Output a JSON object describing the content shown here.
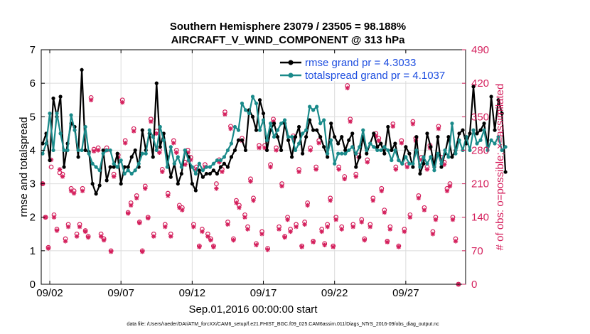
{
  "chart_data": {
    "type": "line",
    "title": "Southern Hemisphere 23079 / 23505 = 98.188%",
    "subtitle": "AIRCRAFT_V_WIND_COMPONENT @ 313 hPa",
    "xlabel": "Sep.01,2016 00:00:00 start",
    "ylabel_left": "rmse and totalspread",
    "ylabel_right": "# of obs: o=possible; ×=assimilated",
    "footer": "data file: /Users/raeder/DAI/ATM_forcXX/CAM6_setup/f.e21.FHIST_BGC.f09_025.CAM6assim.011/Diags_NTrS_2016-09/obs_diag_output.nc",
    "xlim": [
      1.4,
      31.2
    ],
    "ylim_left": [
      0,
      7
    ],
    "ylim_right": [
      0,
      490
    ],
    "x_ticks": [
      2,
      7,
      12,
      17,
      22,
      27
    ],
    "x_tick_labels": [
      "09/02",
      "09/07",
      "09/12",
      "09/17",
      "09/22",
      "09/27"
    ],
    "y_left_ticks": [
      0,
      1,
      2,
      3,
      4,
      5,
      6,
      7
    ],
    "y_left_tick_labels": [
      "0",
      "1",
      "2",
      "3",
      "4",
      "5",
      "6",
      "7"
    ],
    "y_right_ticks": [
      0,
      70,
      140,
      210,
      280,
      350,
      420,
      490
    ],
    "y_right_tick_labels": [
      "0",
      "70",
      "140",
      "210",
      "280",
      "350",
      "420",
      "490"
    ],
    "colors": {
      "rmse": "#000000",
      "spread": "#1a8a8a",
      "obs": "#d41f5c",
      "legend_text": "#1f4fe0"
    },
    "legend": [
      {
        "name": "rmse grand pr = 4.3033",
        "color": "#000000"
      },
      {
        "name": "totalspread grand pr = 4.1037",
        "color": "#1a8a8a"
      }
    ],
    "x_start": 1.5,
    "x_step": 0.25,
    "series": [
      {
        "name": "rmse",
        "values": [
          4.2,
          4.5,
          3.7,
          5.55,
          5.0,
          5.6,
          3.5,
          4.2,
          4.8,
          4.7,
          3.8,
          6.4,
          4.0,
          3.95,
          3.0,
          2.7,
          2.95,
          4.0,
          3.1,
          3.5,
          3.5,
          3.9,
          3.0,
          3.5,
          3.5,
          3.8,
          4.0,
          3.5,
          4.6,
          4.0,
          4.5,
          3.8,
          6.0,
          4.1,
          4.5,
          3.8,
          3.2,
          3.6,
          3.0,
          3.3,
          4.0,
          3.8,
          3.0,
          2.8,
          3.4,
          3.2,
          3.3,
          3.3,
          3.4,
          3.3,
          3.5,
          3.6,
          3.5,
          3.8,
          4.0,
          4.3,
          4.3,
          4.0,
          5.2,
          5.0,
          4.6,
          5.5,
          5.1,
          4.0,
          4.6,
          4.8,
          4.4,
          4.0,
          4.8,
          4.3,
          3.8,
          4.4,
          4.7,
          3.9,
          4.4,
          4.9,
          4.6,
          4.6,
          4.4,
          4.1,
          3.8,
          4.8,
          4.4,
          4.2,
          4.4,
          4.0,
          4.3,
          4.5,
          3.5,
          3.8,
          4.4,
          3.9,
          4.2,
          4.5,
          4.1,
          4.2,
          3.9,
          4.7,
          4.0,
          4.2,
          3.7,
          3.6,
          4.1,
          3.9,
          3.5,
          4.4,
          3.3,
          3.6,
          4.5,
          4.1,
          3.5,
          4.4,
          3.5,
          3.9,
          4.4,
          3.8,
          4.0,
          4.5,
          4.6,
          4.2,
          4.5,
          5.9,
          4.5,
          4.6,
          4.8,
          4.1,
          5.6,
          4.6,
          5.5,
          5.1,
          3.35
        ]
      },
      {
        "name": "totalspread",
        "values": [
          3.9,
          4.2,
          5.1,
          4.0,
          5.1,
          4.5,
          4.0,
          4.0,
          5.05,
          4.6,
          4.0,
          4.0,
          4.7,
          3.9,
          3.6,
          3.5,
          3.4,
          3.9,
          4.0,
          4.0,
          3.6,
          3.5,
          3.7,
          3.3,
          3.4,
          3.3,
          3.4,
          3.6,
          3.9,
          3.9,
          4.6,
          4.4,
          4.0,
          4.7,
          4.3,
          3.5,
          4.1,
          3.6,
          3.8,
          3.5,
          4.0,
          3.7,
          3.5,
          3.3,
          3.6,
          3.4,
          3.5,
          3.5,
          3.6,
          3.7,
          3.7,
          3.8,
          4.0,
          4.2,
          4.7,
          4.6,
          5.4,
          5.2,
          5.1,
          5.6,
          5.4,
          4.6,
          4.9,
          4.3,
          4.8,
          4.4,
          4.6,
          4.8,
          4.9,
          4.4,
          4.4,
          4.0,
          4.2,
          4.5,
          4.6,
          5.3,
          5.2,
          5.3,
          4.8,
          4.9,
          3.9,
          4.3,
          3.6,
          3.9,
          3.9,
          3.9,
          4.0,
          4.1,
          3.9,
          4.1,
          4.6,
          4.0,
          4.2,
          4.1,
          4.0,
          4.0,
          4.1,
          4.0,
          3.7,
          4.0,
          3.7,
          3.6,
          3.8,
          3.6,
          3.6,
          4.0,
          3.5,
          3.8,
          3.6,
          3.8,
          3.4,
          3.9,
          3.6,
          4.0,
          3.8,
          4.8,
          3.9,
          4.3,
          4.0,
          4.4,
          4.0,
          4.6,
          4.2,
          4.3,
          4.6,
          4.0,
          4.3,
          4.2,
          4.4,
          4.0,
          4.1
        ]
      }
    ],
    "obs_possible": [
      [
        1.5,
        210
      ],
      [
        1.7,
        140
      ],
      [
        1.9,
        77
      ],
      [
        2.1,
        245
      ],
      [
        2.3,
        145
      ],
      [
        2.5,
        115
      ],
      [
        2.7,
        233
      ],
      [
        2.9,
        230
      ],
      [
        3.1,
        95
      ],
      [
        3.3,
        125
      ],
      [
        3.5,
        200
      ],
      [
        3.7,
        195
      ],
      [
        3.9,
        105
      ],
      [
        4.1,
        125
      ],
      [
        4.3,
        200
      ],
      [
        4.5,
        112
      ],
      [
        4.7,
        100
      ],
      [
        4.9,
        390
      ],
      [
        5.1,
        282
      ],
      [
        5.4,
        285
      ],
      [
        5.6,
        105
      ],
      [
        5.8,
        95
      ],
      [
        6.0,
        285
      ],
      [
        6.3,
        70
      ],
      [
        6.5,
        230
      ],
      [
        6.8,
        270
      ],
      [
        7.1,
        385
      ],
      [
        7.3,
        300
      ],
      [
        7.5,
        150
      ],
      [
        7.7,
        170
      ],
      [
        7.9,
        325
      ],
      [
        8.1,
        185
      ],
      [
        8.3,
        130
      ],
      [
        8.5,
        70
      ],
      [
        8.7,
        205
      ],
      [
        8.9,
        140
      ],
      [
        9.1,
        345
      ],
      [
        9.3,
        105
      ],
      [
        9.5,
        320
      ],
      [
        9.7,
        280
      ],
      [
        9.9,
        240
      ],
      [
        10.1,
        125
      ],
      [
        10.3,
        190
      ],
      [
        10.5,
        105
      ],
      [
        10.7,
        300
      ],
      [
        10.9,
        280
      ],
      [
        11.1,
        165
      ],
      [
        11.3,
        160
      ],
      [
        11.5,
        255
      ],
      [
        11.7,
        280
      ],
      [
        11.9,
        265
      ],
      [
        12.1,
        125
      ],
      [
        12.3,
        245
      ],
      [
        12.5,
        80
      ],
      [
        12.7,
        115
      ],
      [
        12.9,
        250
      ],
      [
        13.1,
        105
      ],
      [
        13.3,
        95
      ],
      [
        13.5,
        80
      ],
      [
        13.7,
        210
      ],
      [
        13.9,
        260
      ],
      [
        14.1,
        240
      ],
      [
        14.3,
        360
      ],
      [
        14.5,
        130
      ],
      [
        14.7,
        330
      ],
      [
        14.9,
        95
      ],
      [
        15.1,
        175
      ],
      [
        15.3,
        165
      ],
      [
        15.5,
        305
      ],
      [
        15.7,
        145
      ],
      [
        15.9,
        120
      ],
      [
        16.1,
        220
      ],
      [
        16.3,
        180
      ],
      [
        16.5,
        85
      ],
      [
        16.7,
        290
      ],
      [
        16.9,
        110
      ],
      [
        17.1,
        290
      ],
      [
        17.3,
        75
      ],
      [
        17.5,
        250
      ],
      [
        17.7,
        345
      ],
      [
        17.9,
        285
      ],
      [
        18.1,
        120
      ],
      [
        18.3,
        210
      ],
      [
        18.5,
        100
      ],
      [
        18.7,
        140
      ],
      [
        18.9,
        115
      ],
      [
        19.1,
        310
      ],
      [
        19.3,
        125
      ],
      [
        19.5,
        240
      ],
      [
        19.7,
        80
      ],
      [
        19.9,
        130
      ],
      [
        20.1,
        170
      ],
      [
        20.3,
        285
      ],
      [
        20.5,
        90
      ],
      [
        20.7,
        245
      ],
      [
        20.9,
        300
      ],
      [
        21.1,
        115
      ],
      [
        21.3,
        85
      ],
      [
        21.5,
        125
      ],
      [
        21.7,
        180
      ],
      [
        21.9,
        80
      ],
      [
        22.1,
        140
      ],
      [
        22.3,
        245
      ],
      [
        22.5,
        120
      ],
      [
        22.7,
        225
      ],
      [
        22.9,
        415
      ],
      [
        23.1,
        345
      ],
      [
        23.3,
        125
      ],
      [
        23.5,
        230
      ],
      [
        23.7,
        270
      ],
      [
        23.9,
        135
      ],
      [
        24.1,
        95
      ],
      [
        24.3,
        260
      ],
      [
        24.5,
        125
      ],
      [
        24.7,
        180
      ],
      [
        24.9,
        315
      ],
      [
        25.1,
        305
      ],
      [
        25.3,
        200
      ],
      [
        25.5,
        155
      ],
      [
        25.7,
        90
      ],
      [
        25.9,
        120
      ],
      [
        26.1,
        335
      ],
      [
        26.3,
        245
      ],
      [
        26.5,
        80
      ],
      [
        26.7,
        300
      ],
      [
        26.9,
        115
      ],
      [
        27.1,
        250
      ],
      [
        27.3,
        145
      ],
      [
        27.5,
        340
      ],
      [
        27.7,
        305
      ],
      [
        27.9,
        185
      ],
      [
        28.1,
        265
      ],
      [
        28.3,
        160
      ],
      [
        28.5,
        245
      ],
      [
        28.7,
        290
      ],
      [
        28.9,
        110
      ],
      [
        29.1,
        140
      ],
      [
        29.3,
        330
      ],
      [
        29.5,
        265
      ],
      [
        29.7,
        255
      ],
      [
        29.9,
        200
      ],
      [
        30.1,
        210
      ],
      [
        30.3,
        140
      ],
      [
        30.5,
        95
      ],
      [
        30.7,
        0
      ]
    ],
    "obs_assimilated": [
      [
        1.5,
        210
      ],
      [
        1.7,
        140
      ],
      [
        1.9,
        75
      ],
      [
        2.1,
        260
      ],
      [
        2.3,
        140
      ],
      [
        2.5,
        112
      ],
      [
        2.7,
        240
      ],
      [
        2.9,
        225
      ],
      [
        3.1,
        90
      ],
      [
        3.3,
        120
      ],
      [
        3.5,
        195
      ],
      [
        3.7,
        190
      ],
      [
        3.9,
        100
      ],
      [
        4.1,
        120
      ],
      [
        4.3,
        195
      ],
      [
        4.5,
        110
      ],
      [
        4.7,
        98
      ],
      [
        4.9,
        385
      ],
      [
        5.1,
        278
      ],
      [
        5.4,
        280
      ],
      [
        5.6,
        100
      ],
      [
        5.8,
        92
      ],
      [
        6.0,
        280
      ],
      [
        6.3,
        68
      ],
      [
        6.5,
        225
      ],
      [
        6.8,
        265
      ],
      [
        7.1,
        380
      ],
      [
        7.3,
        295
      ],
      [
        7.5,
        148
      ],
      [
        7.7,
        165
      ],
      [
        7.9,
        320
      ],
      [
        8.1,
        180
      ],
      [
        8.3,
        128
      ],
      [
        8.5,
        68
      ],
      [
        8.7,
        200
      ],
      [
        8.9,
        138
      ],
      [
        9.1,
        340
      ],
      [
        9.3,
        100
      ],
      [
        9.5,
        315
      ],
      [
        9.7,
        275
      ],
      [
        9.9,
        235
      ],
      [
        10.1,
        120
      ],
      [
        10.3,
        185
      ],
      [
        10.5,
        100
      ],
      [
        10.7,
        295
      ],
      [
        10.9,
        275
      ],
      [
        11.1,
        160
      ],
      [
        11.3,
        155
      ],
      [
        11.5,
        250
      ],
      [
        11.7,
        275
      ],
      [
        11.9,
        260
      ],
      [
        12.1,
        120
      ],
      [
        12.3,
        240
      ],
      [
        12.5,
        78
      ],
      [
        12.7,
        110
      ],
      [
        12.9,
        245
      ],
      [
        13.1,
        100
      ],
      [
        13.3,
        92
      ],
      [
        13.5,
        78
      ],
      [
        13.7,
        200
      ],
      [
        13.9,
        255
      ],
      [
        14.1,
        235
      ],
      [
        14.3,
        355
      ],
      [
        14.5,
        125
      ],
      [
        14.7,
        325
      ],
      [
        14.9,
        92
      ],
      [
        15.1,
        170
      ],
      [
        15.3,
        160
      ],
      [
        15.5,
        300
      ],
      [
        15.7,
        140
      ],
      [
        15.9,
        115
      ],
      [
        16.1,
        215
      ],
      [
        16.3,
        175
      ],
      [
        16.5,
        82
      ],
      [
        16.7,
        285
      ],
      [
        16.9,
        105
      ],
      [
        17.1,
        285
      ],
      [
        17.3,
        72
      ],
      [
        17.5,
        245
      ],
      [
        17.7,
        340
      ],
      [
        17.9,
        280
      ],
      [
        18.1,
        115
      ],
      [
        18.3,
        205
      ],
      [
        18.5,
        98
      ],
      [
        18.7,
        135
      ],
      [
        18.9,
        110
      ],
      [
        19.1,
        305
      ],
      [
        19.3,
        120
      ],
      [
        19.5,
        235
      ],
      [
        19.7,
        78
      ],
      [
        19.9,
        125
      ],
      [
        20.1,
        165
      ],
      [
        20.3,
        280
      ],
      [
        20.5,
        88
      ],
      [
        20.7,
        240
      ],
      [
        20.9,
        295
      ],
      [
        21.1,
        110
      ],
      [
        21.3,
        82
      ],
      [
        21.5,
        120
      ],
      [
        21.7,
        175
      ],
      [
        21.9,
        78
      ],
      [
        22.1,
        135
      ],
      [
        22.3,
        240
      ],
      [
        22.5,
        115
      ],
      [
        22.7,
        220
      ],
      [
        22.9,
        410
      ],
      [
        23.1,
        340
      ],
      [
        23.3,
        120
      ],
      [
        23.5,
        225
      ],
      [
        23.7,
        265
      ],
      [
        23.9,
        130
      ],
      [
        24.1,
        92
      ],
      [
        24.3,
        255
      ],
      [
        24.5,
        120
      ],
      [
        24.7,
        175
      ],
      [
        24.9,
        310
      ],
      [
        25.1,
        300
      ],
      [
        25.3,
        195
      ],
      [
        25.5,
        150
      ],
      [
        25.7,
        88
      ],
      [
        25.9,
        115
      ],
      [
        26.1,
        330
      ],
      [
        26.3,
        240
      ],
      [
        26.5,
        78
      ],
      [
        26.7,
        295
      ],
      [
        26.9,
        110
      ],
      [
        27.1,
        245
      ],
      [
        27.3,
        140
      ],
      [
        27.5,
        335
      ],
      [
        27.7,
        300
      ],
      [
        27.9,
        180
      ],
      [
        28.1,
        260
      ],
      [
        28.3,
        155
      ],
      [
        28.5,
        240
      ],
      [
        28.7,
        285
      ],
      [
        28.9,
        105
      ],
      [
        29.1,
        135
      ],
      [
        29.3,
        325
      ],
      [
        29.5,
        260
      ],
      [
        29.7,
        250
      ],
      [
        29.9,
        195
      ],
      [
        30.1,
        205
      ],
      [
        30.3,
        135
      ],
      [
        30.5,
        90
      ],
      [
        30.7,
        0
      ]
    ]
  }
}
